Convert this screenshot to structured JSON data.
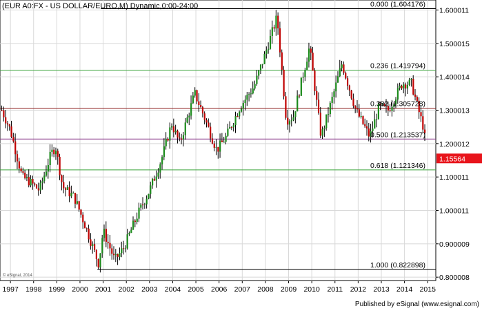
{
  "chart_data": {
    "type": "candlestick",
    "title": "(EUR A0:FX - US DOLLAR/EURO,M) Dynamic,0:00-24:00",
    "xlabel": "",
    "ylabel": "",
    "ylim": [
      0.79,
      1.63
    ],
    "xlim": [
      1996.55,
      2015.35
    ],
    "x_ticks": [
      "1997",
      "1998",
      "1999",
      "2000",
      "2001",
      "2002",
      "2003",
      "2004",
      "2005",
      "2006",
      "2007",
      "2008",
      "2009",
      "2010",
      "2011",
      "2012",
      "2013",
      "2014",
      "2015"
    ],
    "y_ticks": [
      "1.600011",
      "1.500015",
      "1.400014",
      "1.300013",
      "1.200012",
      "1.100011",
      "1.000011",
      "0.900009",
      "0.800008"
    ],
    "last_price": "1.15564",
    "colors": {
      "up": "#1a8a1a",
      "down": "#c00000",
      "wick": "#000000",
      "last_price_bg": "#e8141b",
      "grid": "#d8d8d8"
    },
    "fib_levels": [
      {
        "label": "0.000 (1.604176)",
        "value": 1.604176,
        "color": "#000000"
      },
      {
        "label": "0.236 (1.419794)",
        "value": 1.419794,
        "color": "#3aa33a"
      },
      {
        "label": "0.382 (1.305728)",
        "value": 1.305728,
        "color": "#8b1a1a"
      },
      {
        "label": "0.500 (1.213537)",
        "value": 1.213537,
        "color": "#8b3a8b"
      },
      {
        "label": "0.618 (1.121346)",
        "value": 1.121346,
        "color": "#3aa33a"
      },
      {
        "label": "1.000 (0.822898)",
        "value": 0.822898,
        "color": "#000000"
      }
    ],
    "series": [
      {
        "x": 1996.625,
        "y": 1.3
      },
      {
        "x": 1997.0,
        "y": 1.24
      },
      {
        "x": 1997.5,
        "y": 1.1
      },
      {
        "x": 1997.75,
        "y": 1.09
      },
      {
        "x": 1998.25,
        "y": 1.06
      },
      {
        "x": 1998.75,
        "y": 1.17
      },
      {
        "x": 1998.95,
        "y": 1.19
      },
      {
        "x": 1999.25,
        "y": 1.07
      },
      {
        "x": 1999.75,
        "y": 1.04
      },
      {
        "x": 2000.25,
        "y": 0.95
      },
      {
        "x": 2000.8,
        "y": 0.84
      },
      {
        "x": 2001.0,
        "y": 0.94
      },
      {
        "x": 2001.5,
        "y": 0.85
      },
      {
        "x": 2001.9,
        "y": 0.89
      },
      {
        "x": 2002.5,
        "y": 0.99
      },
      {
        "x": 2003.0,
        "y": 1.06
      },
      {
        "x": 2003.5,
        "y": 1.15
      },
      {
        "x": 2003.95,
        "y": 1.26
      },
      {
        "x": 2004.3,
        "y": 1.2
      },
      {
        "x": 2004.95,
        "y": 1.35
      },
      {
        "x": 2005.3,
        "y": 1.29
      },
      {
        "x": 2005.9,
        "y": 1.18
      },
      {
        "x": 2006.3,
        "y": 1.22
      },
      {
        "x": 2006.9,
        "y": 1.31
      },
      {
        "x": 2007.5,
        "y": 1.37
      },
      {
        "x": 2007.95,
        "y": 1.46
      },
      {
        "x": 2008.5,
        "y": 1.58
      },
      {
        "x": 2008.9,
        "y": 1.27
      },
      {
        "x": 2009.2,
        "y": 1.28
      },
      {
        "x": 2009.9,
        "y": 1.49
      },
      {
        "x": 2010.4,
        "y": 1.22
      },
      {
        "x": 2010.9,
        "y": 1.34
      },
      {
        "x": 2011.3,
        "y": 1.44
      },
      {
        "x": 2011.9,
        "y": 1.3
      },
      {
        "x": 2012.5,
        "y": 1.22
      },
      {
        "x": 2012.9,
        "y": 1.31
      },
      {
        "x": 2013.3,
        "y": 1.3
      },
      {
        "x": 2013.9,
        "y": 1.38
      },
      {
        "x": 2014.3,
        "y": 1.38
      },
      {
        "x": 2014.6,
        "y": 1.3
      },
      {
        "x": 2014.85,
        "y": 1.24
      },
      {
        "x": 2014.95,
        "y": 1.156
      }
    ]
  },
  "credit": "© eSignal, 2014",
  "publisher": "Published by eSignal (www.esignal.com)"
}
